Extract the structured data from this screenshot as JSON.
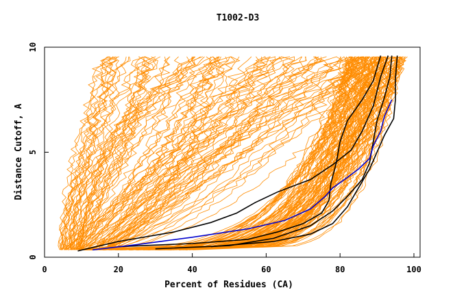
{
  "chart_data": {
    "type": "line",
    "title": "T1002-D3",
    "xlabel": "Percent of Residues (CA)",
    "ylabel": "Distance Cutoff, A",
    "xlim": [
      0,
      100
    ],
    "ylim": [
      0,
      10
    ],
    "x_ticks": [
      "0",
      "20",
      "40",
      "60",
      "80",
      "100"
    ],
    "y_ticks": [
      "0",
      "5",
      "10"
    ],
    "colors": {
      "background_series": "#ff8c00",
      "highlight": "#000000",
      "highlight_alt": "#0000cc",
      "axis": "#000000"
    },
    "highlighted_series": [
      {
        "name": "black-curve-1",
        "color": "#000000",
        "points": [
          [
            9,
            0.3
          ],
          [
            20,
            0.75
          ],
          [
            35,
            1.2
          ],
          [
            45,
            1.65
          ],
          [
            52,
            2.1
          ],
          [
            57,
            2.6
          ],
          [
            63,
            3.1
          ],
          [
            72,
            3.7
          ],
          [
            78,
            4.4
          ],
          [
            83,
            5.1
          ],
          [
            86,
            6.0
          ],
          [
            89,
            7.2
          ],
          [
            91,
            8.6
          ],
          [
            93,
            9.6
          ]
        ]
      },
      {
        "name": "black-curve-2",
        "color": "#000000",
        "points": [
          [
            20,
            0.5
          ],
          [
            40,
            0.65
          ],
          [
            55,
            0.85
          ],
          [
            63,
            1.2
          ],
          [
            70,
            1.6
          ],
          [
            75,
            2.1
          ],
          [
            77,
            2.7
          ],
          [
            77.5,
            3.5
          ],
          [
            79,
            4.5
          ],
          [
            80,
            5.5
          ],
          [
            82,
            6.5
          ],
          [
            86,
            7.5
          ],
          [
            89,
            8.4
          ],
          [
            91,
            9.6
          ]
        ]
      },
      {
        "name": "black-curve-3",
        "color": "#000000",
        "points": [
          [
            30,
            0.4
          ],
          [
            50,
            0.55
          ],
          [
            62,
            0.9
          ],
          [
            72,
            1.5
          ],
          [
            78,
            2.2
          ],
          [
            82,
            2.9
          ],
          [
            86,
            3.7
          ],
          [
            88,
            4.5
          ],
          [
            89,
            5.5
          ],
          [
            90,
            6.5
          ],
          [
            92,
            7.6
          ],
          [
            93.5,
            8.6
          ],
          [
            94,
            9.6
          ]
        ]
      },
      {
        "name": "black-curve-4",
        "color": "#000000",
        "points": [
          [
            45,
            0.5
          ],
          [
            62,
            0.75
          ],
          [
            72,
            1.1
          ],
          [
            78,
            1.6
          ],
          [
            82,
            2.4
          ],
          [
            85,
            3.3
          ],
          [
            88,
            4.2
          ],
          [
            90,
            5.0
          ],
          [
            92,
            5.8
          ],
          [
            94.5,
            6.6
          ],
          [
            95,
            7.5
          ],
          [
            95,
            8.5
          ],
          [
            95.5,
            9.6
          ]
        ]
      },
      {
        "name": "blue-curve",
        "color": "#0000cc",
        "points": [
          [
            13,
            0.35
          ],
          [
            25,
            0.6
          ],
          [
            40,
            0.95
          ],
          [
            55,
            1.35
          ],
          [
            65,
            1.75
          ],
          [
            72,
            2.3
          ],
          [
            76,
            2.9
          ],
          [
            78,
            3.3
          ],
          [
            82,
            3.8
          ],
          [
            85,
            4.2
          ],
          [
            88,
            4.7
          ],
          [
            89,
            5.3
          ],
          [
            91,
            6.0
          ],
          [
            92,
            6.7
          ],
          [
            94,
            7.5
          ]
        ]
      }
    ]
  }
}
